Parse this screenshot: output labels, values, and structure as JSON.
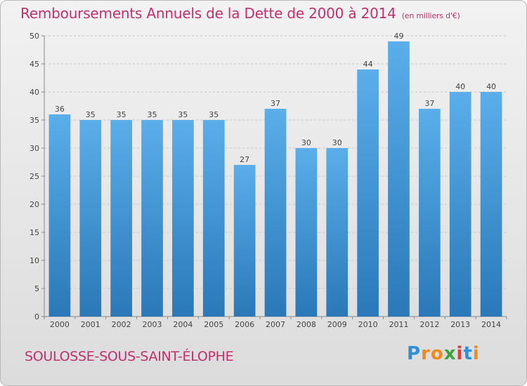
{
  "chart_data": {
    "type": "bar",
    "title": "Remboursements Annuels de la Dette de 2000 à 2014",
    "subtitle": "(en milliers d'€)",
    "categories": [
      "2000",
      "2001",
      "2002",
      "2003",
      "2004",
      "2005",
      "2006",
      "2007",
      "2008",
      "2009",
      "2010",
      "2011",
      "2012",
      "2013",
      "2014"
    ],
    "values": [
      36,
      35,
      35,
      35,
      35,
      35,
      27,
      37,
      30,
      30,
      44,
      49,
      37,
      40,
      40
    ],
    "ylim": [
      0,
      50
    ],
    "yticks": [
      0,
      5,
      10,
      15,
      20,
      25,
      30,
      35,
      40,
      45,
      50
    ],
    "xlabel": "",
    "ylabel": "",
    "grid": true,
    "colors": {
      "bar_top": "#5aaeea",
      "bar_bottom": "#2a78b8",
      "grid": "#c8c8c8",
      "title": "#c0306e"
    }
  },
  "footer": {
    "place": "SOULOSSE-SOUS-SAINT-ÉLOPHE"
  },
  "logo": {
    "letters": [
      "P",
      "r",
      "o",
      "x",
      "i",
      "t",
      "i"
    ],
    "colors": [
      "#2f8fd8",
      "#f08a1d",
      "#f08a1d",
      "#3aa63a",
      "#e23b3b",
      "#2f8fd8",
      "#f08a1d"
    ]
  }
}
